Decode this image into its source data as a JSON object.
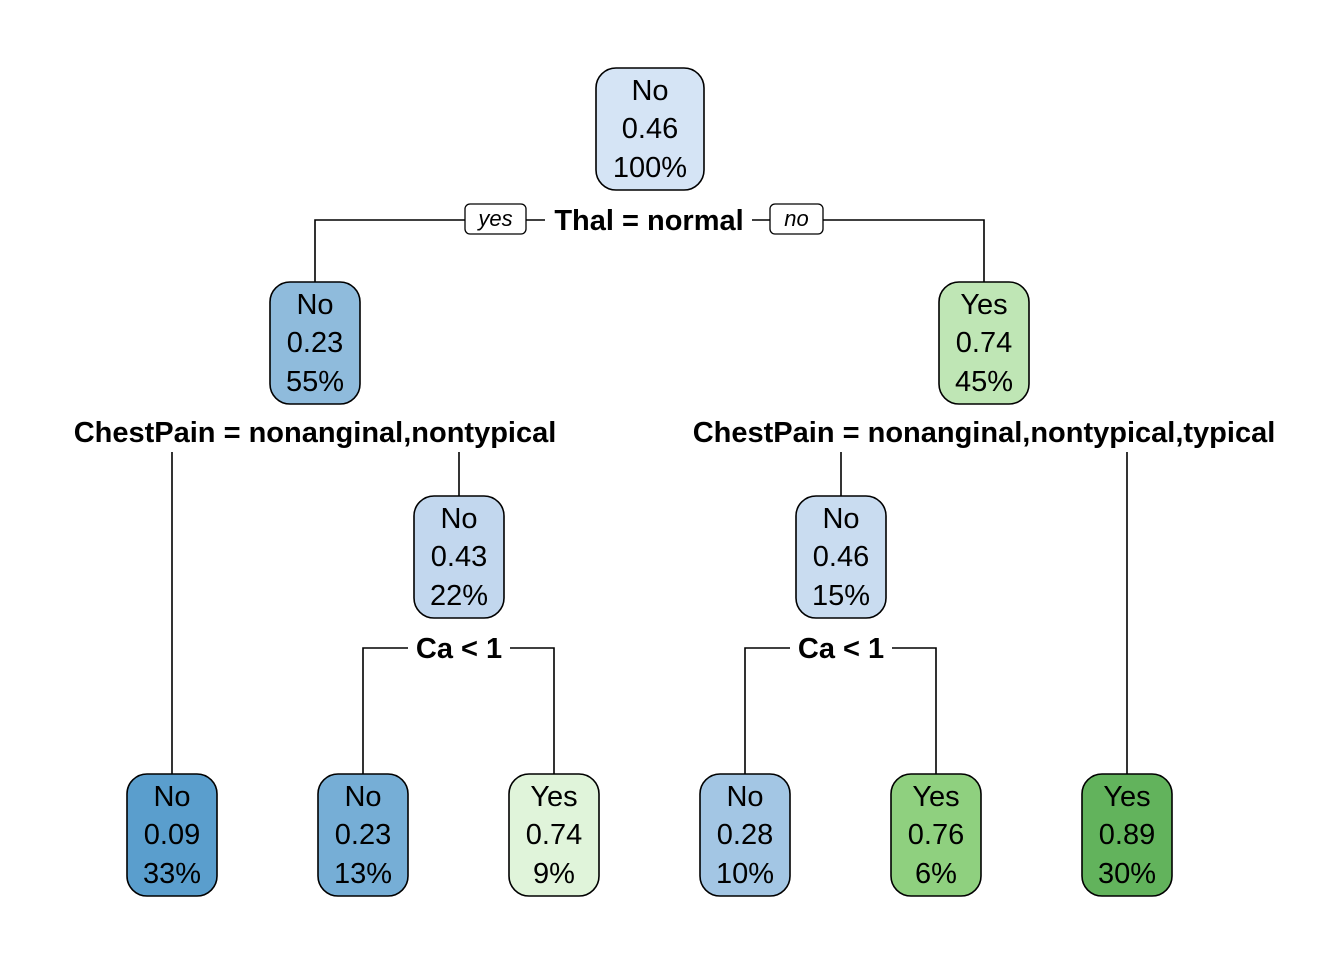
{
  "diagram": {
    "type": "decision-tree",
    "root": {
      "class": "No",
      "prob": "0.46",
      "pct": "100%",
      "color": "#d5e4f5",
      "split": "Thal = normal",
      "yes_label": "yes",
      "no_label": "no",
      "left": {
        "class": "No",
        "prob": "0.23",
        "pct": "55%",
        "color": "#8fbbdc",
        "split": "ChestPain = nonanginal,nontypical",
        "left": {
          "class": "No",
          "prob": "0.09",
          "pct": "33%",
          "color": "#5a9ecd"
        },
        "right": {
          "class": "No",
          "prob": "0.43",
          "pct": "22%",
          "color": "#c2d7ee",
          "split": "Ca < 1",
          "left": {
            "class": "No",
            "prob": "0.23",
            "pct": "13%",
            "color": "#76aed6"
          },
          "right": {
            "class": "Yes",
            "prob": "0.74",
            "pct": "9%",
            "color": "#e0f4da"
          }
        }
      },
      "right": {
        "class": "Yes",
        "prob": "0.74",
        "pct": "45%",
        "color": "#bfe6b5",
        "split": "ChestPain = nonanginal,nontypical,typical",
        "left": {
          "class": "No",
          "prob": "0.46",
          "pct": "15%",
          "color": "#c9dcf0",
          "split": "Ca < 1",
          "left": {
            "class": "No",
            "prob": "0.28",
            "pct": "10%",
            "color": "#a3c6e4"
          },
          "right": {
            "class": "Yes",
            "prob": "0.76",
            "pct": "6%",
            "color": "#8fd07f"
          }
        },
        "right": {
          "class": "Yes",
          "prob": "0.89",
          "pct": "30%",
          "color": "#62b35c"
        }
      }
    }
  }
}
